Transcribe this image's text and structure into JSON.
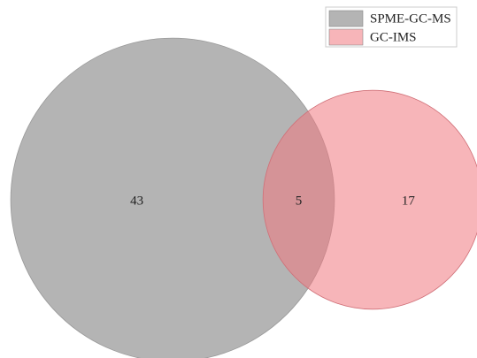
{
  "chart_data": {
    "type": "venn",
    "series": [
      {
        "name": "SPME-GC-MS",
        "color": "#b4b4b4"
      },
      {
        "name": "GC-IMS",
        "color": "#f07880"
      }
    ],
    "values": [
      43,
      5,
      17
    ]
  }
}
